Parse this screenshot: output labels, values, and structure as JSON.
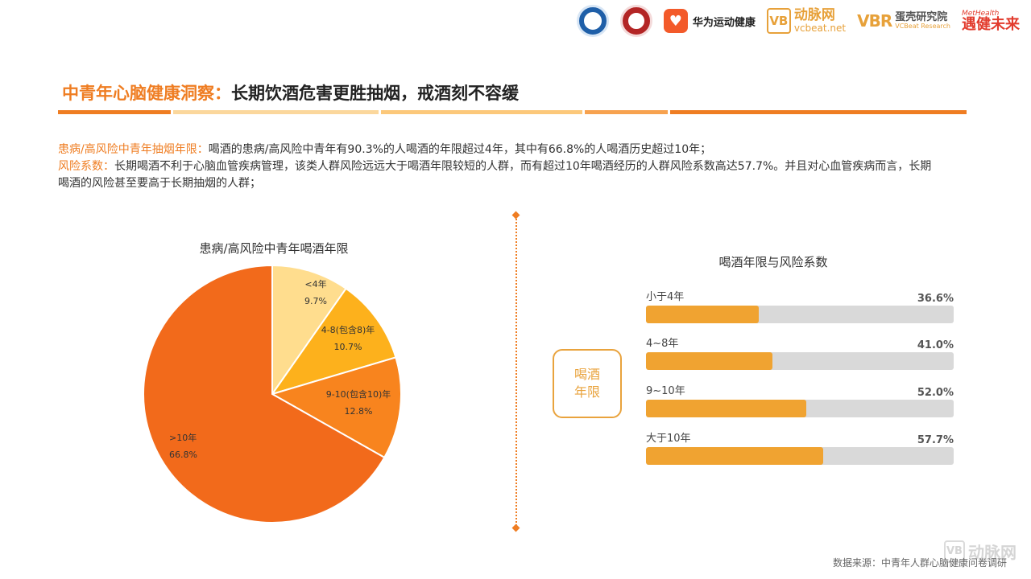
{
  "header": {
    "logos": [
      {
        "name": "university-badge"
      },
      {
        "name": "association-badge"
      },
      {
        "name": "huawei-health",
        "text": "华为运动健康"
      },
      {
        "name": "vcbeat",
        "text_cn": "动脉网",
        "text_en": "vcbeat.net"
      },
      {
        "name": "vbr",
        "mark": "VBR",
        "text_cn": "蛋壳研究院",
        "text_en": "VCBeat Research"
      },
      {
        "name": "methealth",
        "text_en": "MetHealth",
        "text_cn": "遇健未来"
      }
    ]
  },
  "title": {
    "prefix": "中青年心脑健康洞察：",
    "main": "长期饮酒危害更胜抽烟，戒酒刻不容缓"
  },
  "summary": {
    "line1_label": "患病/高风险中青年抽烟年限：",
    "line1_text": "喝酒的患病/高风险中青年有90.3%的人喝酒的年限超过4年，其中有66.8%的人喝酒历史超过10年；",
    "line2_label": "风险系数：",
    "line2_text": "长期喝酒不利于心脑血管疾病管理，该类人群风险远远大于喝酒年限较短的人群，而有超过10年喝酒经历的人群风险系数高达57.7%。并且对心血管疾病而言，长期喝酒的风险甚至要高于长期抽烟的人群；"
  },
  "axis_box": {
    "line1": "喝酒",
    "line2": "年限"
  },
  "footer": {
    "source": "数据来源：中青年人群心脑健康问卷调研",
    "watermark_cn": "动脉网"
  },
  "colors": {
    "orange_title": "#ef7d22",
    "pie": [
      "#ffdd8e",
      "#fdb11c",
      "#f8841e",
      "#f26a1b"
    ],
    "bar_fill": "#f0a331",
    "bar_track": "#d9d9d9"
  },
  "chart_data": [
    {
      "type": "pie",
      "title": "患病/高风险中青年喝酒年限",
      "slices": [
        {
          "label": "<4年",
          "value": 9.7,
          "display": "9.7%"
        },
        {
          "label": "4-8(包含8)年",
          "value": 10.7,
          "display": "10.7%"
        },
        {
          "label": "9-10(包含10)年",
          "value": 12.8,
          "display": "12.8%"
        },
        {
          "label": ">10年",
          "value": 66.8,
          "display": "66.8%"
        }
      ]
    },
    {
      "type": "bar",
      "orientation": "horizontal",
      "title": "喝酒年限与风险系数",
      "categories": [
        "小于4年",
        "4~8年",
        "9~10年",
        "大于10年"
      ],
      "values": [
        36.6,
        41.0,
        52.0,
        57.7
      ],
      "display": [
        "36.6%",
        "41.0%",
        "52.0%",
        "57.7%"
      ],
      "xlim": [
        0,
        100
      ]
    }
  ]
}
